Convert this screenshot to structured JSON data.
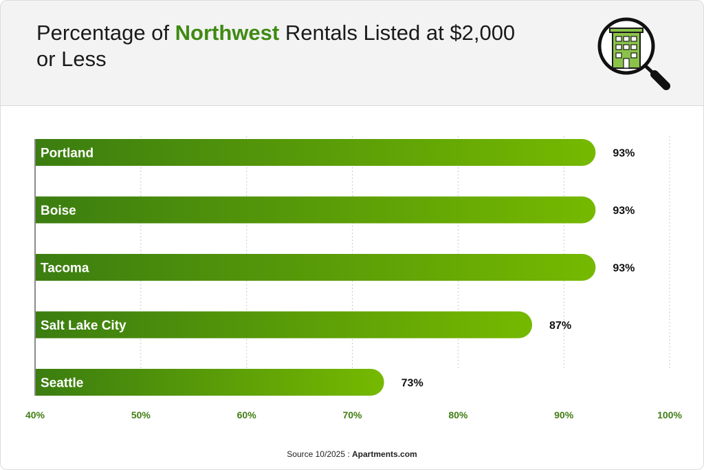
{
  "header": {
    "title_prefix": "Percentage of ",
    "title_highlight": "Northwest",
    "title_suffix": " Rentals Listed at $2,000 or Less",
    "icon": "building-search-icon"
  },
  "chart_data": {
    "type": "bar",
    "orientation": "horizontal",
    "categories": [
      "Portland",
      "Boise",
      "Tacoma",
      "Salt Lake City",
      "Seattle"
    ],
    "values": [
      93,
      93,
      93,
      87,
      73
    ],
    "value_labels": [
      "93%",
      "93%",
      "93%",
      "87%",
      "73%"
    ],
    "xlim": [
      40,
      100
    ],
    "x_ticks": [
      40,
      50,
      60,
      70,
      80,
      90,
      100
    ],
    "x_tick_labels": [
      "40%",
      "50%",
      "60%",
      "70%",
      "80%",
      "90%",
      "100%"
    ],
    "grid": "vertical dotted",
    "legend": "none"
  },
  "footer": {
    "source_prefix": "Source 10/2025 : ",
    "source_name": "Apartments.com"
  },
  "colors": {
    "bar_start": "#3b7d10",
    "bar_end": "#76b900",
    "accent": "#3f8a12",
    "tick_label": "#3f7d12",
    "header_bg": "#f3f3f3"
  }
}
